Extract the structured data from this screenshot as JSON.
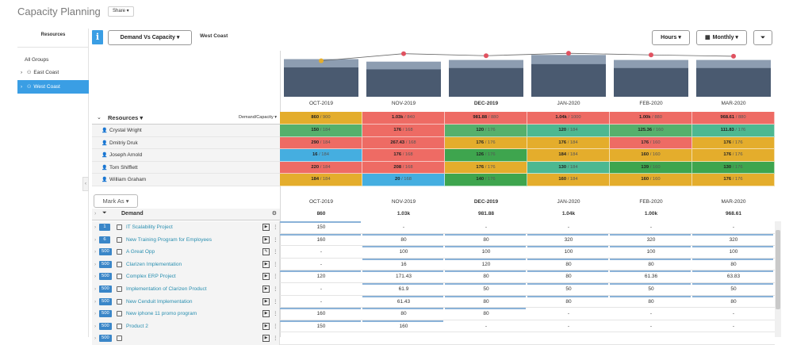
{
  "app": {
    "title": "Capacity Planning",
    "share_label": "Share ▾"
  },
  "sidebar": {
    "heading": "Resources",
    "items": [
      {
        "label": "All Groups"
      },
      {
        "label": "East Coast"
      },
      {
        "label": "West Coast"
      }
    ]
  },
  "toolbar": {
    "view_label": "Demand Vs Capacity ▾",
    "region": "West Coast",
    "hours_label": "Hours ▾",
    "period_label": "Monthly ▾"
  },
  "months": [
    "OCT-2019",
    "NOV-2019",
    "DEC-2019",
    "JAN-2020",
    "FEB-2020",
    "MAR-2020"
  ],
  "chart_data": {
    "type": "bar",
    "categories": [
      "OCT-2019",
      "NOV-2019",
      "DEC-2019",
      "JAN-2020",
      "FEB-2020",
      "MAR-2020"
    ],
    "series": [
      {
        "values": [
          900,
          840,
          880,
          1000,
          880,
          880
        ]
      },
      {
        "values": [
          860,
          1030,
          981.88,
          1040,
          1000,
          968.61
        ]
      }
    ],
    "ylim": [
      0,
      1100
    ],
    "colors": {
      "capacity": "#8d9db1",
      "allocated": "#4a5a70",
      "demand": "#e05260"
    }
  },
  "resources": {
    "header_label": "Resources ▾",
    "mode_label": "Demand/Capacity ▾",
    "totals": [
      "860 / 900",
      "1.03k / 840",
      "981.88 / 880",
      "1.04k / 1000",
      "1.00k / 880",
      "968.61 / 880"
    ],
    "total_colors": [
      "#e4ad2c",
      "#ee6b64",
      "#ee6b64",
      "#ee6b64",
      "#ee6b64",
      "#ee6b64"
    ],
    "rows": [
      {
        "name": "Crystal Wright",
        "cells": [
          "150 / 184",
          "176 / 168",
          "120 / 176",
          "120 / 184",
          "125.36 / 160",
          "111.83 / 176"
        ],
        "colors": [
          "#56b06c",
          "#ee6b64",
          "#56b06c",
          "#4db891",
          "#56b06c",
          "#4db891"
        ]
      },
      {
        "name": "Dmitriy Druk",
        "cells": [
          "290 / 184",
          "267.43 / 168",
          "176 / 176",
          "176 / 184",
          "176 / 160",
          "176 / 176"
        ],
        "colors": [
          "#ee6b64",
          "#ee6b64",
          "#e4ad2c",
          "#e4ad2c",
          "#ee6b64",
          "#e4ad2c"
        ]
      },
      {
        "name": "Joseph Arnold",
        "cells": [
          "16 / 184",
          "176 / 168",
          "126 / 176",
          "184 / 184",
          "160 / 160",
          "176 / 176"
        ],
        "colors": [
          "#45aee0",
          "#ee6b64",
          "#3ea54e",
          "#e4ad2c",
          "#e4ad2c",
          "#e4ad2c"
        ]
      },
      {
        "name": "Tom Shifflett",
        "cells": [
          "220 / 184",
          "208 / 168",
          "176 / 176",
          "130 / 184",
          "139 / 160",
          "130 / 176"
        ],
        "colors": [
          "#ee6b64",
          "#ee6b64",
          "#e4ad2c",
          "#4db891",
          "#3ea54e",
          "#3ea54e"
        ]
      },
      {
        "name": "William Graham",
        "cells": [
          "184 / 184",
          "20 / 168",
          "140 / 176",
          "160 / 184",
          "160 / 160",
          "176 / 176"
        ],
        "colors": [
          "#e4ad2c",
          "#45aee0",
          "#3ea54e",
          "#e4ad2c",
          "#e4ad2c",
          "#e4ad2c"
        ]
      }
    ]
  },
  "demand": {
    "markas_label": "Mark As ▾",
    "header_label": "Demand",
    "totals": [
      "860",
      "1.03k",
      "981.88",
      "1.04k",
      "1.00k",
      "968.61"
    ],
    "rows": [
      {
        "badge": "1",
        "name": "IT Scalability Project",
        "values": [
          "150",
          "-",
          "-",
          "-",
          "-",
          "-"
        ]
      },
      {
        "badge": "6",
        "name": "New Training Program for Employees",
        "values": [
          "160",
          "80",
          "80",
          "320",
          "320",
          "320"
        ]
      },
      {
        "badge": "500",
        "name": "A Great Opp",
        "values": [
          "-",
          "100",
          "100",
          "100",
          "100",
          "100"
        ]
      },
      {
        "badge": "500",
        "name": "Clarizen Implementation",
        "values": [
          "-",
          "16",
          "120",
          "80",
          "80",
          "80"
        ]
      },
      {
        "badge": "500",
        "name": "Complex ERP Project",
        "values": [
          "120",
          "171.43",
          "80",
          "80",
          "61.36",
          "63.83"
        ]
      },
      {
        "badge": "500",
        "name": "Implementation of Clarizen Product",
        "values": [
          "-",
          "61.9",
          "50",
          "50",
          "50",
          "50"
        ]
      },
      {
        "badge": "500",
        "name": "New Cenduit Implementation",
        "values": [
          "-",
          "61.43",
          "80",
          "80",
          "80",
          "80"
        ]
      },
      {
        "badge": "500",
        "name": "New iphone 11 promo program",
        "values": [
          "160",
          "80",
          "80",
          "-",
          "-",
          "-"
        ]
      },
      {
        "badge": "500",
        "name": "Product 2",
        "values": [
          "150",
          "160",
          "-",
          "-",
          "-",
          "-"
        ]
      },
      {
        "badge": "500",
        "name": "",
        "values": [
          "",
          "",
          "",
          "",
          "",
          ""
        ]
      }
    ]
  }
}
